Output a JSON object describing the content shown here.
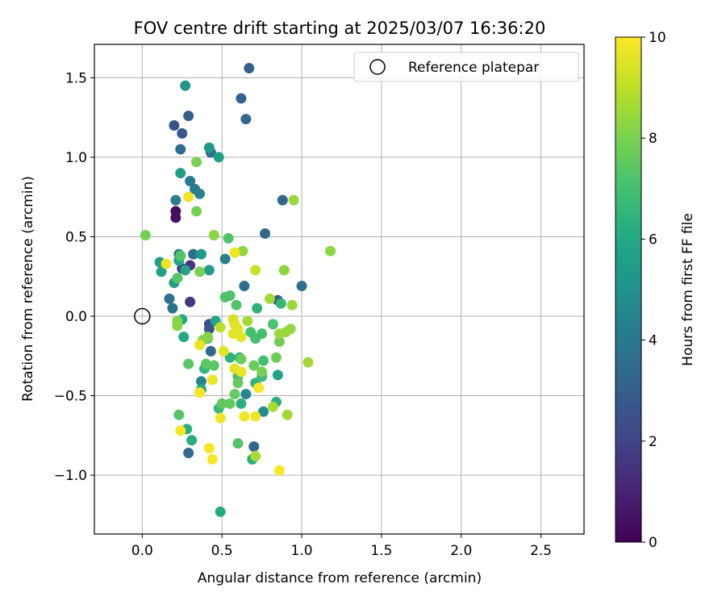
{
  "chart_data": {
    "type": "scatter",
    "title": "FOV centre drift starting at 2025/03/07 16:36:20",
    "xlabel": "Angular distance from reference (arcmin)",
    "ylabel": "Rotation from reference (arcmin)",
    "xlim": [
      -0.3,
      2.77
    ],
    "ylim": [
      -1.37,
      1.71
    ],
    "xticks": [
      0.0,
      0.5,
      1.0,
      1.5,
      2.0,
      2.5
    ],
    "yticks": [
      -1.0,
      -0.5,
      0.0,
      0.5,
      1.0,
      1.5
    ],
    "xtick_labels": [
      "0.0",
      "0.5",
      "1.0",
      "1.5",
      "2.0",
      "2.5"
    ],
    "ytick_labels": [
      "−1.0",
      "−0.5",
      "0.0",
      "0.5",
      "1.0",
      "1.5"
    ],
    "grid": true,
    "legend": {
      "position": "upper right",
      "label": "Reference platepar"
    },
    "reference_point": {
      "x": 0.0,
      "y": 0.0
    },
    "colorbar": {
      "label": "Hours from first FF file",
      "range": [
        0,
        10
      ],
      "ticks": [
        0,
        2,
        4,
        6,
        8,
        10
      ],
      "colormap": "viridis"
    },
    "points": [
      {
        "x": 0.21,
        "y": 0.66,
        "h": 0.3
      },
      {
        "x": 0.21,
        "y": 0.62,
        "h": 0.4
      },
      {
        "x": 0.3,
        "y": 0.32,
        "h": 1.5
      },
      {
        "x": 0.25,
        "y": 0.3,
        "h": 1.8
      },
      {
        "x": 0.3,
        "y": 0.09,
        "h": 1.6
      },
      {
        "x": 0.42,
        "y": -0.05,
        "h": 2.2
      },
      {
        "x": 0.42,
        "y": -0.08,
        "h": 2.5
      },
      {
        "x": 0.2,
        "y": 1.2,
        "h": 2.6
      },
      {
        "x": 0.25,
        "y": 1.15,
        "h": 2.8
      },
      {
        "x": 0.29,
        "y": 1.26,
        "h": 3.0
      },
      {
        "x": 0.67,
        "y": 1.56,
        "h": 3.0
      },
      {
        "x": 0.62,
        "y": 1.37,
        "h": 3.2
      },
      {
        "x": 0.65,
        "y": 1.24,
        "h": 3.4
      },
      {
        "x": 0.24,
        "y": 1.05,
        "h": 3.5
      },
      {
        "x": 0.43,
        "y": 1.03,
        "h": 3.6
      },
      {
        "x": 0.88,
        "y": 0.73,
        "h": 3.4
      },
      {
        "x": 0.77,
        "y": 0.52,
        "h": 3.4
      },
      {
        "x": 1.0,
        "y": 0.19,
        "h": 3.6
      },
      {
        "x": 0.64,
        "y": 0.19,
        "h": 3.5
      },
      {
        "x": 0.85,
        "y": 0.1,
        "h": 3.0
      },
      {
        "x": 0.7,
        "y": -0.82,
        "h": 3.3
      },
      {
        "x": 0.29,
        "y": -0.86,
        "h": 3.4
      },
      {
        "x": 0.43,
        "y": -0.22,
        "h": 3.4
      },
      {
        "x": 0.32,
        "y": 0.39,
        "h": 3.6
      },
      {
        "x": 0.17,
        "y": 0.11,
        "h": 3.7
      },
      {
        "x": 0.19,
        "y": 0.05,
        "h": 3.8
      },
      {
        "x": 0.3,
        "y": 0.85,
        "h": 4.0
      },
      {
        "x": 0.33,
        "y": 0.8,
        "h": 4.1
      },
      {
        "x": 0.36,
        "y": 0.77,
        "h": 4.3
      },
      {
        "x": 0.52,
        "y": 0.36,
        "h": 4.3
      },
      {
        "x": 0.23,
        "y": 0.39,
        "h": 4.4
      },
      {
        "x": 0.21,
        "y": 0.73,
        "h": 4.2
      },
      {
        "x": 0.65,
        "y": -0.49,
        "h": 4.5
      },
      {
        "x": 0.37,
        "y": -0.41,
        "h": 4.6
      },
      {
        "x": 0.76,
        "y": -0.6,
        "h": 4.8
      },
      {
        "x": 0.27,
        "y": 1.45,
        "h": 5.2
      },
      {
        "x": 0.42,
        "y": 1.06,
        "h": 5.4
      },
      {
        "x": 0.48,
        "y": 1.0,
        "h": 5.6
      },
      {
        "x": 0.24,
        "y": 0.9,
        "h": 5.5
      },
      {
        "x": 0.37,
        "y": 0.39,
        "h": 5.4
      },
      {
        "x": 0.11,
        "y": 0.34,
        "h": 5.5
      },
      {
        "x": 0.42,
        "y": 0.29,
        "h": 5.5
      },
      {
        "x": 0.12,
        "y": 0.28,
        "h": 5.7
      },
      {
        "x": 0.2,
        "y": 0.21,
        "h": 5.6
      },
      {
        "x": 0.23,
        "y": 0.35,
        "h": 5.8
      },
      {
        "x": 0.27,
        "y": 0.29,
        "h": 5.8
      },
      {
        "x": 0.85,
        "y": -0.37,
        "h": 5.7
      },
      {
        "x": 0.46,
        "y": -0.03,
        "h": 5.9
      },
      {
        "x": 0.25,
        "y": -0.02,
        "h": 6.0
      },
      {
        "x": 0.26,
        "y": -0.13,
        "h": 6.0
      },
      {
        "x": 0.37,
        "y": -0.46,
        "h": 6.1
      },
      {
        "x": 0.49,
        "y": -1.23,
        "h": 6.1
      },
      {
        "x": 0.69,
        "y": -0.9,
        "h": 6.2
      },
      {
        "x": 0.28,
        "y": -0.71,
        "h": 6.2
      },
      {
        "x": 0.31,
        "y": -0.78,
        "h": 6.2
      },
      {
        "x": 0.62,
        "y": -0.55,
        "h": 6.3
      },
      {
        "x": 0.84,
        "y": -0.54,
        "h": 6.3
      },
      {
        "x": 0.71,
        "y": -0.42,
        "h": 6.4
      },
      {
        "x": 0.55,
        "y": -0.26,
        "h": 6.4
      },
      {
        "x": 0.61,
        "y": -0.26,
        "h": 6.5
      },
      {
        "x": 0.39,
        "y": -0.33,
        "h": 6.5
      },
      {
        "x": 0.72,
        "y": 0.05,
        "h": 6.4
      },
      {
        "x": 0.87,
        "y": 0.08,
        "h": 6.6
      },
      {
        "x": 0.48,
        "y": -0.58,
        "h": 6.7
      },
      {
        "x": 0.41,
        "y": -0.14,
        "h": 6.8
      },
      {
        "x": 0.75,
        "y": -0.38,
        "h": 6.8
      },
      {
        "x": 0.6,
        "y": -0.38,
        "h": 6.9
      },
      {
        "x": 0.75,
        "y": -0.11,
        "h": 7.0
      },
      {
        "x": 0.71,
        "y": -0.14,
        "h": 7.0
      },
      {
        "x": 0.68,
        "y": -0.1,
        "h": 7.0
      },
      {
        "x": 0.76,
        "y": -0.28,
        "h": 7.0
      },
      {
        "x": 0.82,
        "y": -0.05,
        "h": 7.1
      },
      {
        "x": 0.52,
        "y": 0.12,
        "h": 7.2
      },
      {
        "x": 0.55,
        "y": 0.13,
        "h": 7.2
      },
      {
        "x": 0.59,
        "y": 0.07,
        "h": 7.2
      },
      {
        "x": 0.54,
        "y": 0.49,
        "h": 7.2
      },
      {
        "x": 0.24,
        "y": 0.38,
        "h": 7.3
      },
      {
        "x": 0.22,
        "y": 0.24,
        "h": 7.3
      },
      {
        "x": 0.6,
        "y": -0.8,
        "h": 7.3
      },
      {
        "x": 0.23,
        "y": -0.62,
        "h": 7.3
      },
      {
        "x": 0.29,
        "y": -0.3,
        "h": 7.4
      },
      {
        "x": 0.4,
        "y": -0.3,
        "h": 7.4
      },
      {
        "x": 0.45,
        "y": -0.31,
        "h": 7.4
      },
      {
        "x": 0.5,
        "y": -0.55,
        "h": 7.5
      },
      {
        "x": 0.55,
        "y": -0.55,
        "h": 7.6
      },
      {
        "x": 0.58,
        "y": -0.49,
        "h": 7.6
      },
      {
        "x": 0.6,
        "y": -0.42,
        "h": 7.6
      },
      {
        "x": 0.7,
        "y": -0.31,
        "h": 7.7
      },
      {
        "x": 0.62,
        "y": -0.27,
        "h": 7.7
      },
      {
        "x": 0.84,
        "y": -0.26,
        "h": 7.8
      },
      {
        "x": 0.86,
        "y": -0.16,
        "h": 7.8
      },
      {
        "x": 0.75,
        "y": -0.35,
        "h": 7.9
      },
      {
        "x": 0.34,
        "y": 0.66,
        "h": 7.9
      },
      {
        "x": 0.02,
        "y": 0.51,
        "h": 7.9
      },
      {
        "x": 0.34,
        "y": 0.97,
        "h": 8.0
      },
      {
        "x": 0.36,
        "y": 0.28,
        "h": 8.0
      },
      {
        "x": 0.22,
        "y": -0.03,
        "h": 8.1
      },
      {
        "x": 0.22,
        "y": -0.06,
        "h": 8.2
      },
      {
        "x": 0.41,
        "y": -0.13,
        "h": 8.2
      },
      {
        "x": 0.38,
        "y": -0.15,
        "h": 8.2
      },
      {
        "x": 0.45,
        "y": 0.51,
        "h": 8.3
      },
      {
        "x": 0.63,
        "y": 0.41,
        "h": 8.3
      },
      {
        "x": 0.89,
        "y": 0.29,
        "h": 8.3
      },
      {
        "x": 0.95,
        "y": 0.73,
        "h": 8.5
      },
      {
        "x": 0.94,
        "y": 0.07,
        "h": 8.5
      },
      {
        "x": 0.8,
        "y": 0.11,
        "h": 8.6
      },
      {
        "x": 0.66,
        "y": -0.03,
        "h": 8.6
      },
      {
        "x": 0.86,
        "y": -0.11,
        "h": 8.5
      },
      {
        "x": 0.9,
        "y": -0.1,
        "h": 8.5
      },
      {
        "x": 0.93,
        "y": -0.08,
        "h": 8.4
      },
      {
        "x": 1.04,
        "y": -0.29,
        "h": 8.6
      },
      {
        "x": 1.18,
        "y": 0.41,
        "h": 8.3
      },
      {
        "x": 0.91,
        "y": -0.62,
        "h": 8.6
      },
      {
        "x": 0.82,
        "y": -0.57,
        "h": 8.7
      },
      {
        "x": 0.71,
        "y": -0.88,
        "h": 8.7
      },
      {
        "x": 0.73,
        "y": -0.45,
        "h": 8.7
      },
      {
        "x": 0.49,
        "y": -0.07,
        "h": 9.0
      },
      {
        "x": 0.71,
        "y": 0.29,
        "h": 9.2
      },
      {
        "x": 0.57,
        "y": -0.02,
        "h": 9.4
      },
      {
        "x": 0.58,
        "y": -0.05,
        "h": 9.5
      },
      {
        "x": 0.6,
        "y": -0.08,
        "h": 9.5
      },
      {
        "x": 0.57,
        "y": -0.11,
        "h": 9.6
      },
      {
        "x": 0.62,
        "y": -0.13,
        "h": 9.6
      },
      {
        "x": 0.51,
        "y": -0.22,
        "h": 9.6
      },
      {
        "x": 0.58,
        "y": -0.33,
        "h": 9.6
      },
      {
        "x": 0.62,
        "y": -0.35,
        "h": 9.7
      },
      {
        "x": 0.44,
        "y": -0.4,
        "h": 9.7
      },
      {
        "x": 0.36,
        "y": -0.18,
        "h": 9.7
      },
      {
        "x": 0.15,
        "y": 0.33,
        "h": 9.8
      },
      {
        "x": 0.29,
        "y": 0.75,
        "h": 9.8
      },
      {
        "x": 0.58,
        "y": 0.4,
        "h": 9.8
      },
      {
        "x": 0.49,
        "y": -0.64,
        "h": 9.8
      },
      {
        "x": 0.64,
        "y": -0.63,
        "h": 9.8
      },
      {
        "x": 0.71,
        "y": -0.63,
        "h": 9.8
      },
      {
        "x": 0.24,
        "y": -0.72,
        "h": 9.9
      },
      {
        "x": 0.42,
        "y": -0.83,
        "h": 9.9
      },
      {
        "x": 0.44,
        "y": -0.9,
        "h": 9.9
      },
      {
        "x": 0.86,
        "y": -0.97,
        "h": 10.0
      },
      {
        "x": 0.73,
        "y": -0.45,
        "h": 9.9
      },
      {
        "x": 0.36,
        "y": -0.48,
        "h": 9.9
      }
    ]
  }
}
